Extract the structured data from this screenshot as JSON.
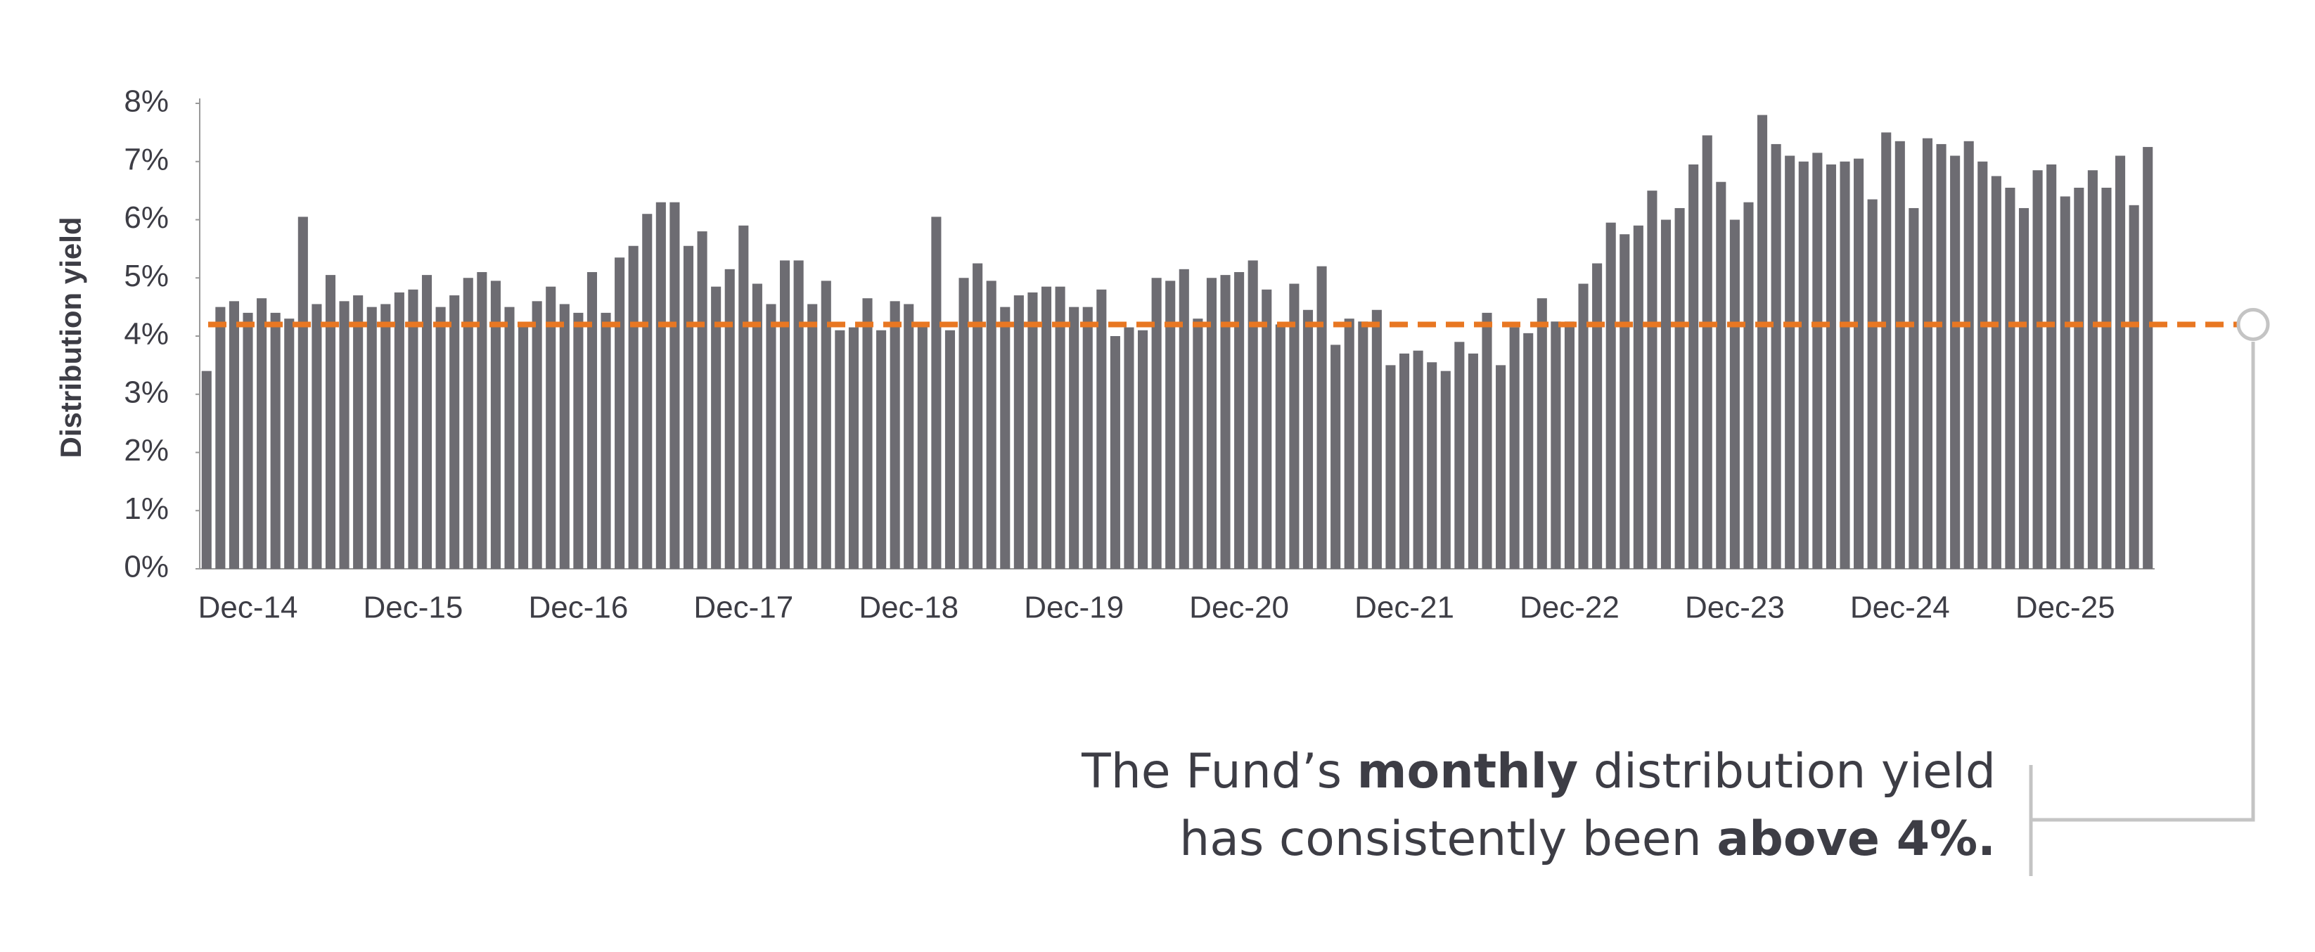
{
  "chart_data": {
    "type": "bar",
    "y_label": "Distribution yield",
    "categories": [
      null,
      null,
      null,
      "Dec-14",
      null,
      null,
      null,
      null,
      null,
      null,
      null,
      null,
      null,
      null,
      null,
      "Dec-15",
      null,
      null,
      null,
      null,
      null,
      null,
      null,
      null,
      null,
      null,
      null,
      "Dec-16",
      null,
      null,
      null,
      null,
      null,
      null,
      null,
      null,
      null,
      null,
      null,
      "Dec-17",
      null,
      null,
      null,
      null,
      null,
      null,
      null,
      null,
      null,
      null,
      null,
      "Dec-18",
      null,
      null,
      null,
      null,
      null,
      null,
      null,
      null,
      null,
      null,
      null,
      "Dec-19",
      null,
      null,
      null,
      null,
      null,
      null,
      null,
      null,
      null,
      null,
      null,
      "Dec-20",
      null,
      null,
      null,
      null,
      null,
      null,
      null,
      null,
      null,
      null,
      null,
      "Dec-21",
      null,
      null,
      null,
      null,
      null,
      null,
      null,
      null,
      null,
      null,
      null,
      "Dec-22",
      null,
      null,
      null,
      null,
      null,
      null,
      null,
      null,
      null,
      null,
      null,
      "Dec-23",
      null,
      null,
      null,
      null,
      null,
      null,
      null,
      null,
      null,
      null,
      null,
      "Dec-24",
      null,
      null,
      null,
      null,
      null,
      null,
      null,
      null,
      null,
      null,
      null,
      "Dec-25",
      null,
      null,
      null,
      null,
      null,
      null
    ],
    "values": [
      3.4,
      4.5,
      4.6,
      4.4,
      4.65,
      4.4,
      4.3,
      6.05,
      4.55,
      5.05,
      4.6,
      4.7,
      4.5,
      4.55,
      4.75,
      4.8,
      5.05,
      4.5,
      4.7,
      5.0,
      5.1,
      4.95,
      4.5,
      4.2,
      4.6,
      4.85,
      4.55,
      4.4,
      5.1,
      4.4,
      5.35,
      5.55,
      6.1,
      6.3,
      6.3,
      5.55,
      5.8,
      4.85,
      5.15,
      5.9,
      4.9,
      4.55,
      5.3,
      5.3,
      4.55,
      4.95,
      4.1,
      4.15,
      4.65,
      4.1,
      4.6,
      4.55,
      4.2,
      6.05,
      4.1,
      5.0,
      5.25,
      4.95,
      4.5,
      4.7,
      4.75,
      4.85,
      4.85,
      4.5,
      4.5,
      4.8,
      4.0,
      4.15,
      4.1,
      5.0,
      4.95,
      5.15,
      4.3,
      5.0,
      5.05,
      5.1,
      5.3,
      4.8,
      4.2,
      4.9,
      4.45,
      5.2,
      3.85,
      4.3,
      4.25,
      4.45,
      3.5,
      3.7,
      3.75,
      3.55,
      3.4,
      3.9,
      3.7,
      4.4,
      3.5,
      4.15,
      4.05,
      4.65,
      4.25,
      4.25,
      4.9,
      5.25,
      5.95,
      5.75,
      5.9,
      6.5,
      6.0,
      6.2,
      6.95,
      7.45,
      6.65,
      6.0,
      6.3,
      7.8,
      7.3,
      7.1,
      7.0,
      7.15,
      6.95,
      7.0,
      7.05,
      6.35,
      7.5,
      7.35,
      6.2,
      7.4,
      7.3,
      7.1,
      7.35,
      7.0,
      6.75,
      6.55,
      6.2,
      6.85,
      6.95,
      6.4,
      6.55,
      6.85,
      6.55,
      7.1,
      6.25,
      7.25
    ],
    "color": "#6d6c72",
    "ylim": [
      0,
      8
    ],
    "yticks": [
      {
        "value": 0,
        "label": "0%"
      },
      {
        "value": 1,
        "label": "1%"
      },
      {
        "value": 2,
        "label": "2%"
      },
      {
        "value": 3,
        "label": "3%"
      },
      {
        "value": 4,
        "label": "4%"
      },
      {
        "value": 5,
        "label": "5%"
      },
      {
        "value": 6,
        "label": "6%"
      },
      {
        "value": 7,
        "label": "7%"
      },
      {
        "value": 8,
        "label": "8%"
      }
    ],
    "grid": false,
    "reference_line": {
      "value": 4.2,
      "color": "#e87722"
    },
    "annotation": [
      [
        {
          "text": "The Fund’s ",
          "bold": false
        },
        {
          "text": "monthly",
          "bold": true
        },
        {
          "text": " distribution yield",
          "bold": false
        }
      ],
      [
        {
          "text": "has consistently been ",
          "bold": false
        },
        {
          "text": "above 4%.",
          "bold": true
        }
      ]
    ]
  }
}
